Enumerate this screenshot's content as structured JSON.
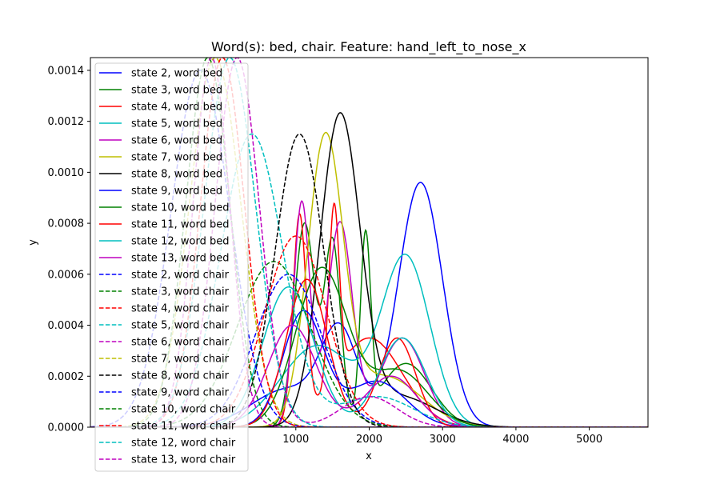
{
  "chart_data": {
    "type": "line",
    "title": "Word(s): bed, chair. Feature: hand_left_to_nose_x",
    "xlabel": "x",
    "ylabel": "y",
    "xlim": [
      -1800,
      5800
    ],
    "ylim": [
      0,
      0.00145
    ],
    "x_ticks": [
      1000,
      2000,
      3000,
      4000,
      5000
    ],
    "x_tick_labels": [
      "1000",
      "2000",
      "3000",
      "4000",
      "5000"
    ],
    "y_ticks": [
      0,
      0.0002,
      0.0004,
      0.0006,
      0.0008,
      0.001,
      0.0012,
      0.0014
    ],
    "y_tick_labels": [
      "0.0000",
      "0.0002",
      "0.0004",
      "0.0006",
      "0.0008",
      "0.0010",
      "0.0012",
      "0.0014"
    ],
    "legend_position": "upper-left",
    "grid": false,
    "series": [
      {
        "name": "state 2, word bed",
        "color": "#0000ff",
        "style": "solid",
        "components": [
          [
            0.00015,
            900,
            500
          ],
          [
            0.00035,
            1600,
            250
          ],
          [
            0.00096,
            2700,
            300
          ]
        ]
      },
      {
        "name": "state 3, word bed",
        "color": "#008000",
        "style": "solid",
        "components": [
          [
            0.0008,
            1120,
            140
          ],
          [
            0.00072,
            1500,
            110
          ],
          [
            0.0007,
            1950,
            70
          ],
          [
            0.00025,
            2500,
            350
          ]
        ]
      },
      {
        "name": "state 4, word bed",
        "color": "#ff0000",
        "style": "solid",
        "components": [
          [
            0.0008,
            1050,
            90
          ],
          [
            0.00068,
            1520,
            70
          ],
          [
            0.00035,
            2000,
            450
          ]
        ]
      },
      {
        "name": "state 5, word bed",
        "color": "#00bfbf",
        "style": "solid",
        "components": [
          [
            0.00032,
            1300,
            500
          ],
          [
            0.00066,
            2500,
            330
          ]
        ]
      },
      {
        "name": "state 6, word bed",
        "color": "#bf00bf",
        "style": "solid",
        "components": [
          [
            0.00088,
            1080,
            110
          ],
          [
            0.0008,
            1600,
            170
          ],
          [
            0.00035,
            2450,
            300
          ]
        ]
      },
      {
        "name": "state 7, word bed",
        "color": "#bfbf00",
        "style": "solid",
        "components": [
          [
            0.0011,
            1400,
            240
          ],
          [
            0.0002,
            2200,
            500
          ]
        ]
      },
      {
        "name": "state 8, word bed",
        "color": "#000000",
        "style": "solid",
        "components": [
          [
            0.0012,
            1600,
            270
          ],
          [
            0.00012,
            2400,
            500
          ]
        ]
      },
      {
        "name": "state 9, word bed",
        "color": "#0000ff",
        "style": "solid",
        "components": [
          [
            0.00045,
            1100,
            280
          ],
          [
            0.00018,
            2100,
            400
          ]
        ]
      },
      {
        "name": "state 10, word bed",
        "color": "#008000",
        "style": "solid",
        "components": [
          [
            0.00062,
            1350,
            350
          ],
          [
            0.00022,
            2400,
            400
          ]
        ]
      },
      {
        "name": "state 11, word bed",
        "color": "#ff0000",
        "style": "solid",
        "components": [
          [
            0.00058,
            1150,
            280
          ],
          [
            0.00035,
            2380,
            250
          ]
        ]
      },
      {
        "name": "state 12, word bed",
        "color": "#00bfbf",
        "style": "solid",
        "components": [
          [
            0.00055,
            900,
            350
          ],
          [
            0.00035,
            2450,
            320
          ]
        ]
      },
      {
        "name": "state 13, word bed",
        "color": "#bf00bf",
        "style": "solid",
        "components": [
          [
            0.0004,
            950,
            330
          ],
          [
            0.0002,
            2300,
            350
          ]
        ]
      },
      {
        "name": "state 2, word chair",
        "color": "#0000ff",
        "style": "dashed",
        "components": [
          [
            0.0006,
            900,
            450
          ]
        ]
      },
      {
        "name": "state 3, word chair",
        "color": "#008000",
        "style": "dashed",
        "components": [
          [
            0.00065,
            700,
            500
          ]
        ]
      },
      {
        "name": "state 4, word chair",
        "color": "#ff0000",
        "style": "dashed",
        "components": [
          [
            0.00075,
            1000,
            420
          ]
        ]
      },
      {
        "name": "state 5, word chair",
        "color": "#00bfbf",
        "style": "dashed",
        "components": [
          [
            0.00115,
            400,
            420
          ],
          [
            0.00012,
            2100,
            500
          ]
        ]
      },
      {
        "name": "state 6, word chair",
        "color": "#bf00bf",
        "style": "dashed",
        "components": [
          [
            0.00145,
            200,
            300
          ],
          [
            0.00012,
            2000,
            380
          ]
        ]
      },
      {
        "name": "state 7, word chair",
        "color": "#bfbf00",
        "style": "dashed",
        "components": [
          [
            0.00145,
            -100,
            350
          ]
        ]
      },
      {
        "name": "state 8, word chair",
        "color": "#000000",
        "style": "dashed",
        "components": [
          [
            0.00115,
            1050,
            330
          ]
        ]
      },
      {
        "name": "state 9, word chair",
        "color": "#0000ff",
        "style": "dashed",
        "components": [
          [
            0.0014,
            -300,
            400
          ]
        ]
      },
      {
        "name": "state 10, word chair",
        "color": "#008000",
        "style": "dashed",
        "components": [
          [
            0.00145,
            -200,
            300
          ]
        ]
      },
      {
        "name": "state 11, word chair",
        "color": "#ff0000",
        "style": "dashed",
        "components": [
          [
            0.00145,
            0,
            300
          ]
        ]
      },
      {
        "name": "state 12, word chair",
        "color": "#00bfbf",
        "style": "dashed",
        "components": [
          [
            0.00145,
            100,
            350
          ]
        ]
      },
      {
        "name": "state 13, word chair",
        "color": "#bf00bf",
        "style": "dashed",
        "components": [
          [
            0.00145,
            -150,
            250
          ]
        ]
      }
    ]
  }
}
